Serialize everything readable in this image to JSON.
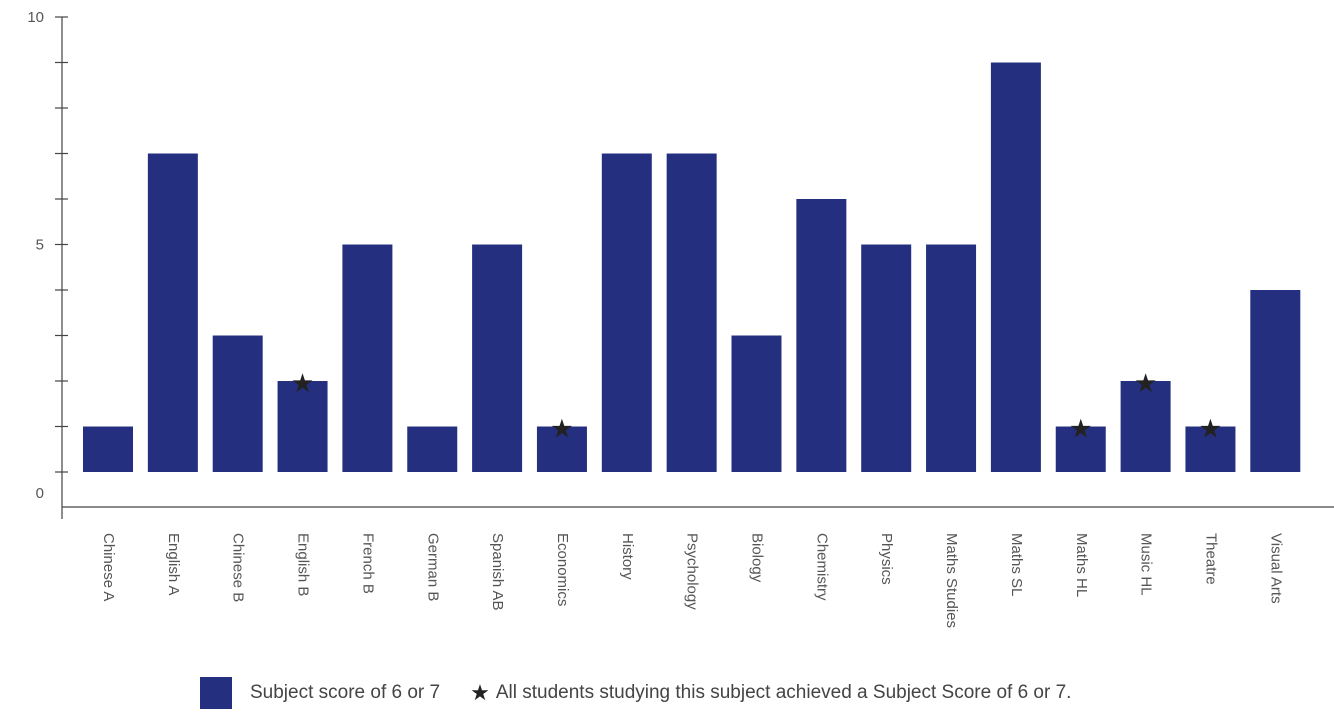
{
  "chart_data": {
    "type": "bar",
    "categories": [
      "Chinese A",
      "English A",
      "Chinese B",
      "English B",
      "French B",
      "German B",
      "Spanish AB",
      "Economics",
      "History",
      "Psychology",
      "Biology",
      "Chemistry",
      "Physics",
      "Maths Studies",
      "Maths SL",
      "Maths HL",
      "Music HL",
      "Theatre",
      "Visual Arts"
    ],
    "values": [
      1,
      7,
      3,
      2,
      5,
      1,
      5,
      1,
      7,
      7,
      3,
      6,
      5,
      5,
      9,
      1,
      2,
      1,
      4
    ],
    "starred": [
      "English B",
      "Economics",
      "Maths HL",
      "Music HL",
      "Theatre"
    ],
    "y_ticks": [
      "0",
      "5",
      "10"
    ],
    "ylim": [
      -0.5,
      10
    ],
    "title": "",
    "xlabel": "",
    "ylabel": "",
    "bar_color": "#24307f",
    "grid": false,
    "legend": {
      "position": "bottom-center",
      "swatch_label": "Subject score of 6 or 7",
      "star_symbol": "★",
      "star_label": "All students studying this subject achieved a Subject Score of 6 or 7."
    }
  }
}
